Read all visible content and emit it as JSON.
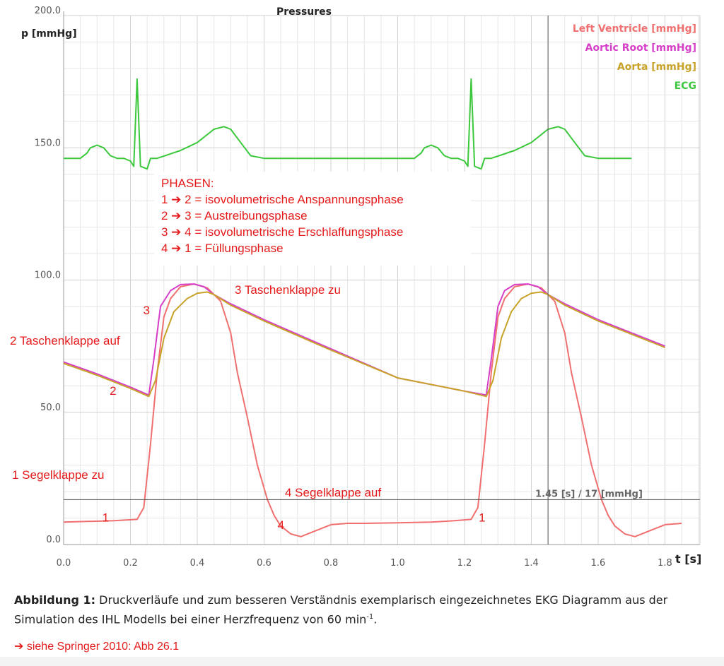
{
  "chart_data": {
    "type": "line",
    "title": "Pressures",
    "xlabel": "t [s]",
    "ylabel": "p [mmHg]",
    "xlim": [
      0.0,
      2.0
    ],
    "ylim": [
      0.0,
      200.0
    ],
    "x_ticks": [
      "0.0",
      "0.2",
      "0.4",
      "0.6",
      "0.8",
      "1.0",
      "1.2",
      "1.4",
      "1.6",
      "1.8"
    ],
    "y_ticks": [
      "0.0",
      "50.0",
      "100.0",
      "150.0",
      "200.0"
    ],
    "grid": true,
    "legend_position": "top-right",
    "cursor": {
      "x": 1.45,
      "y": 17,
      "label": "1.45 [s] / 17 [mmHg]"
    },
    "series": [
      {
        "name": "Left Ventricle [mmHg]",
        "color": "#f07070",
        "x": [
          0.0,
          0.15,
          0.22,
          0.24,
          0.26,
          0.28,
          0.3,
          0.32,
          0.35,
          0.39,
          0.43,
          0.47,
          0.5,
          0.52,
          0.55,
          0.58,
          0.61,
          0.63,
          0.65,
          0.68,
          0.71,
          0.75,
          0.8,
          0.85,
          0.9,
          1.0,
          1.1,
          1.17,
          1.22,
          1.24,
          1.26,
          1.28,
          1.3,
          1.32,
          1.35,
          1.39,
          1.43,
          1.47,
          1.5,
          1.52,
          1.55,
          1.58,
          1.61,
          1.63,
          1.65,
          1.68,
          1.71,
          1.75,
          1.8,
          1.85,
          2.0
        ],
        "y": [
          8.5,
          9,
          9.5,
          14,
          38,
          65,
          86,
          93,
          97.5,
          98.5,
          97,
          92,
          80,
          65,
          48,
          30,
          17,
          11,
          7,
          4,
          3,
          5,
          7.5,
          8,
          8,
          8.2,
          8.5,
          9,
          9.5,
          14,
          38,
          65,
          86,
          93,
          97.5,
          98.5,
          97,
          92,
          80,
          65,
          48,
          30,
          17,
          11,
          7,
          4,
          3,
          5,
          7.5,
          8,
          8
        ]
      },
      {
        "name": "Aortic Root [mmHg]",
        "color": "#d63fc8",
        "x": [
          0.0,
          0.1,
          0.2,
          0.255,
          0.27,
          0.29,
          0.32,
          0.35,
          0.39,
          0.42,
          0.45,
          0.5,
          0.6,
          0.8,
          1.0,
          1.2,
          1.265,
          1.28,
          1.3,
          1.32,
          1.35,
          1.39,
          1.42,
          1.45,
          1.5,
          1.6,
          1.8,
          2.0
        ],
        "y": [
          69,
          64.5,
          59.5,
          56.5,
          70,
          90,
          96,
          98.3,
          98.5,
          97.5,
          94.5,
          91,
          85,
          74,
          63,
          58,
          56.5,
          70,
          90,
          96,
          98.3,
          98.5,
          97.5,
          94.5,
          91,
          85,
          75,
          69
        ]
      },
      {
        "name": "Aorta [mmHg]",
        "color": "#c8a32a",
        "x": [
          0.0,
          0.1,
          0.2,
          0.255,
          0.275,
          0.3,
          0.33,
          0.37,
          0.4,
          0.43,
          0.45,
          0.5,
          0.6,
          0.8,
          1.0,
          1.2,
          1.265,
          1.285,
          1.31,
          1.34,
          1.37,
          1.4,
          1.43,
          1.45,
          1.5,
          1.6,
          1.8,
          2.0
        ],
        "y": [
          68.5,
          64,
          59,
          56,
          62,
          78,
          88,
          93,
          95,
          95.5,
          94.5,
          90.5,
          84.5,
          73.5,
          63,
          58,
          56,
          62,
          78,
          88,
          93,
          95,
          95.5,
          94.5,
          90.5,
          84.5,
          74.5,
          68.5
        ]
      },
      {
        "name": "ECG",
        "color": "#3cc83c",
        "x": [
          0.0,
          0.05,
          0.07,
          0.08,
          0.1,
          0.12,
          0.14,
          0.16,
          0.18,
          0.2,
          0.21,
          0.22,
          0.23,
          0.25,
          0.26,
          0.28,
          0.35,
          0.4,
          0.45,
          0.48,
          0.5,
          0.53,
          0.56,
          0.6,
          0.7,
          0.9,
          1.0,
          1.05,
          1.07,
          1.08,
          1.1,
          1.12,
          1.14,
          1.16,
          1.18,
          1.2,
          1.21,
          1.22,
          1.23,
          1.25,
          1.26,
          1.28,
          1.35,
          1.4,
          1.45,
          1.48,
          1.5,
          1.53,
          1.56,
          1.6,
          1.7,
          2.0
        ],
        "y": [
          146,
          146,
          148,
          150,
          151,
          150,
          147,
          146,
          146,
          145,
          143,
          176,
          143,
          142,
          146,
          146,
          149,
          152,
          157,
          158,
          157,
          152,
          147,
          146,
          146,
          146,
          146,
          146,
          148,
          150,
          151,
          150,
          147,
          146,
          146,
          145,
          143,
          176,
          143,
          142,
          146,
          146,
          149,
          152,
          157,
          158,
          157,
          152,
          147,
          146,
          146,
          146
        ]
      }
    ],
    "annotations": [
      {
        "text": "3 Taschenklappe zu"
      },
      {
        "text": "2 Taschenklappe auf"
      },
      {
        "text": "1 Segelklappe zu"
      },
      {
        "text": "4 Segelklappe auf"
      }
    ],
    "point_markers": [
      {
        "text": "1",
        "x": 0.24,
        "y": 10
      },
      {
        "text": "2",
        "x": 0.26,
        "y": 58
      },
      {
        "text": "3",
        "x": 0.5,
        "y": 91
      },
      {
        "text": "4",
        "x": 0.64,
        "y": 8
      },
      {
        "text": "1",
        "x": 1.24,
        "y": 10
      }
    ],
    "phases_box": {
      "title": "PHASEN:",
      "lines": [
        "1 ➔ 2 = isovolumetrische Anspannungsphase",
        "2 ➔ 3 = Austreibungsphase",
        "3 ➔ 4 = isovolumetrische Erschlaffungsphase",
        "4 ➔ 1 = Füllungsphase"
      ]
    }
  },
  "caption": {
    "label": "Abbildung 1:",
    "text": "Druckverläufe und zum besseren Verständnis exemplarisch eingezeichnetes EKG Diagramm aus der Simulation des IHL Modells bei einer Herzfrequenz von 60 min",
    "superscript": "-1",
    "end": "."
  },
  "reference": "➔ siehe Springer 2010: Abb 26.1"
}
